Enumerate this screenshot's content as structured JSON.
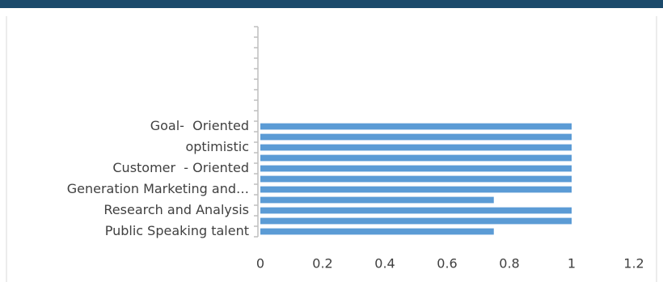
{
  "chart_data": {
    "type": "hbar",
    "categories": [
      "Public Speaking talent",
      null,
      "Research and Analysis",
      null,
      "Generation Marketing and…",
      null,
      "Customer  - Oriented",
      null,
      "optimistic",
      null,
      "Goal-  Oriented",
      null,
      null,
      null,
      null,
      null,
      null,
      null,
      null,
      null
    ],
    "values": [
      0.75,
      1,
      1,
      0.75,
      1,
      1,
      1,
      1,
      1,
      1,
      1,
      null,
      null,
      null,
      null,
      null,
      null,
      null,
      null,
      null
    ],
    "color": "#5b9bd5",
    "xlim": [
      0,
      1.2
    ],
    "xticks": [
      0,
      0.2,
      0.4,
      0.6,
      0.8,
      1,
      1.2
    ]
  }
}
